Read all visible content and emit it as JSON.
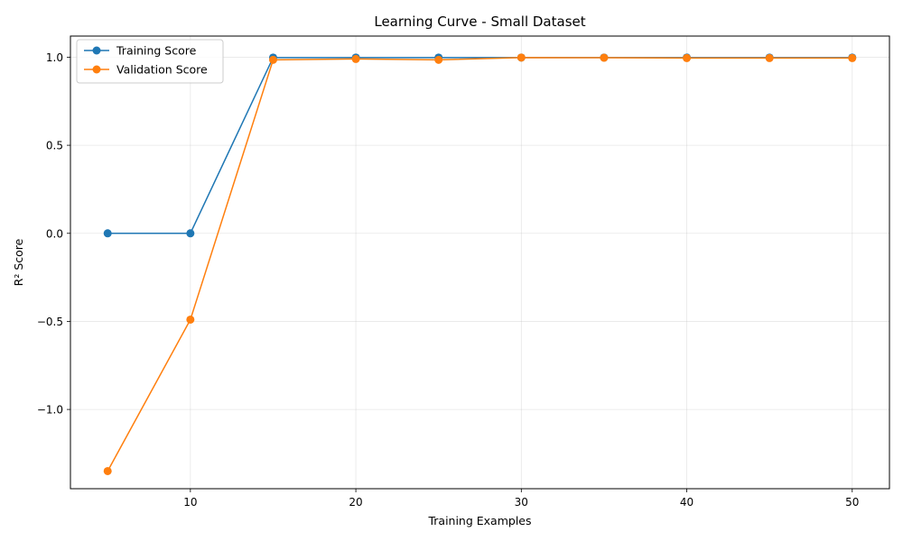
{
  "chart_data": {
    "type": "line",
    "title": "Learning Curve - Small Dataset",
    "xlabel": "Training Examples",
    "ylabel": "R² Score",
    "x": [
      5,
      10,
      15,
      20,
      25,
      30,
      35,
      40,
      45,
      50
    ],
    "series": [
      {
        "name": "Training Score",
        "color": "#1f77b4",
        "values": [
          0.0,
          0.0,
          0.998,
          0.998,
          0.998,
          0.998,
          0.998,
          0.998,
          0.998,
          0.998
        ]
      },
      {
        "name": "Validation Score",
        "color": "#ff7f0e",
        "values": [
          -1.35,
          -0.49,
          0.985,
          0.99,
          0.985,
          0.998,
          0.997,
          0.995,
          0.995,
          0.995
        ]
      }
    ],
    "xlim": [
      2.75,
      52.25
    ],
    "ylim": [
      -1.45,
      1.12
    ],
    "xticks": [
      10,
      20,
      30,
      40,
      50
    ],
    "xtick_labels": [
      "10",
      "20",
      "30",
      "40",
      "50"
    ],
    "yticks": [
      -1.0,
      -0.5,
      0.0,
      0.5,
      1.0
    ],
    "ytick_labels": [
      "−1.0",
      "−0.5",
      "0.0",
      "0.5",
      "1.0"
    ],
    "grid": true,
    "legend_position": "top-left"
  }
}
